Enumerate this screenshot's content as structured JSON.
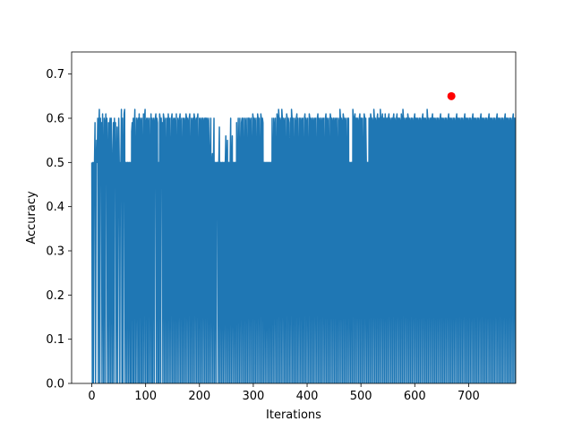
{
  "chart_data": {
    "type": "line",
    "title": "",
    "xlabel": "Iterations",
    "ylabel": "Accuracy",
    "xlim": [
      -37.5,
      787.5
    ],
    "ylim": [
      0.0,
      0.75
    ],
    "xticks": [
      0,
      100,
      200,
      300,
      400,
      500,
      600,
      700
    ],
    "yticks": [
      0.0,
      0.1,
      0.2,
      0.3,
      0.4,
      0.5,
      0.6,
      0.7
    ],
    "xtick_labels": [
      "0",
      "100",
      "200",
      "300",
      "400",
      "500",
      "600",
      "700"
    ],
    "ytick_labels": [
      "0.0",
      "0.1",
      "0.2",
      "0.3",
      "0.4",
      "0.5",
      "0.6",
      "0.7"
    ],
    "grid": false,
    "series": [
      {
        "color": "#1f77b4",
        "x_start": 0,
        "x_step": 1,
        "values": [
          0.5,
          0.0,
          0.5,
          0.0,
          0.5,
          0.5,
          0.59,
          0.0,
          0.5,
          0.55,
          0.5,
          0.6,
          0.0,
          0.58,
          0.62,
          0.0,
          0.6,
          0.5,
          0.59,
          0.0,
          0.61,
          0.5,
          0.0,
          0.6,
          0.59,
          0.0,
          0.61,
          0.5,
          0.6,
          0.0,
          0.5,
          0.59,
          0.0,
          0.58,
          0.6,
          0.0,
          0.6,
          0.5,
          0.0,
          0.5,
          0.59,
          0.0,
          0.6,
          0.5,
          0.59,
          0.0,
          0.5,
          0.58,
          0.0,
          0.5,
          0.6,
          0.5,
          0.0,
          0.5,
          0.5,
          0.62,
          0.0,
          0.6,
          0.0,
          0.5,
          0.61,
          0.62,
          0.0,
          0.5,
          0.5,
          0.0,
          0.5,
          0.5,
          0.0,
          0.5,
          0.5,
          0.0,
          0.5,
          0.0,
          0.57,
          0.59,
          0.0,
          0.6,
          0.0,
          0.58,
          0.62,
          0.0,
          0.5,
          0.6,
          0.0,
          0.59,
          0.6,
          0.0,
          0.61,
          0.0,
          0.6,
          0.59,
          0.0,
          0.6,
          0.0,
          0.5,
          0.61,
          0.0,
          0.6,
          0.62,
          0.0,
          0.59,
          0.6,
          0.0,
          0.6,
          0.0,
          0.59,
          0.6,
          0.0,
          0.5,
          0.61,
          0.0,
          0.6,
          0.0,
          0.59,
          0.6,
          0.0,
          0.59,
          0.6,
          0.61,
          0.0,
          0.6,
          0.59,
          0.0,
          0.5,
          0.0,
          0.61,
          0.6,
          0.0,
          0.6,
          0.5,
          0.59,
          0.0,
          0.61,
          0.6,
          0.0,
          0.59,
          0.6,
          0.0,
          0.5,
          0.6,
          0.0,
          0.61,
          0.59,
          0.0,
          0.6,
          0.5,
          0.0,
          0.6,
          0.61,
          0.0,
          0.59,
          0.6,
          0.0,
          0.6,
          0.59,
          0.0,
          0.61,
          0.5,
          0.0,
          0.6,
          0.59,
          0.0,
          0.6,
          0.61,
          0.0,
          0.59,
          0.6,
          0.0,
          0.5,
          0.6,
          0.0,
          0.6,
          0.59,
          0.0,
          0.61,
          0.6,
          0.0,
          0.6,
          0.59,
          0.0,
          0.6,
          0.61,
          0.0,
          0.5,
          0.6,
          0.0,
          0.59,
          0.6,
          0.0,
          0.61,
          0.6,
          0.0,
          0.59,
          0.6,
          0.0,
          0.6,
          0.61,
          0.0,
          0.5,
          0.6,
          0.0,
          0.6,
          0.59,
          0.0,
          0.6,
          0.6,
          0.0,
          0.59,
          0.6,
          0.0,
          0.6,
          0.6,
          0.0,
          0.6,
          0.59,
          0.0,
          0.6,
          0.5,
          0.0,
          0.53,
          0.6,
          0.0,
          0.5,
          0.52,
          0.0,
          0.5,
          0.6,
          0.0,
          0.5,
          0.5,
          0.0,
          0.5,
          0.5,
          0.5,
          0.0,
          0.5,
          0.58,
          0.0,
          0.5,
          0.5,
          0.0,
          0.5,
          0.5,
          0.0,
          0.5,
          0.5,
          0.0,
          0.5,
          0.56,
          0.0,
          0.5,
          0.55,
          0.0,
          0.5,
          0.5,
          0.0,
          0.5,
          0.6,
          0.0,
          0.5,
          0.56,
          0.0,
          0.5,
          0.5,
          0.0,
          0.5,
          0.5,
          0.0,
          0.59,
          0.5,
          0.0,
          0.6,
          0.5,
          0.0,
          0.6,
          0.5,
          0.0,
          0.59,
          0.6,
          0.0,
          0.6,
          0.5,
          0.0,
          0.6,
          0.59,
          0.0,
          0.6,
          0.5,
          0.0,
          0.6,
          0.6,
          0.0,
          0.6,
          0.59,
          0.0,
          0.6,
          0.5,
          0.0,
          0.61,
          0.6,
          0.0,
          0.6,
          0.59,
          0.0,
          0.6,
          0.5,
          0.0,
          0.61,
          0.6,
          0.0,
          0.6,
          0.5,
          0.0,
          0.61,
          0.6,
          0.0,
          0.6,
          0.59,
          0.0,
          0.5,
          0.5,
          0.0,
          0.5,
          0.5,
          0.0,
          0.5,
          0.5,
          0.0,
          0.5,
          0.5,
          0.0,
          0.5,
          0.5,
          0.0,
          0.6,
          0.5,
          0.0,
          0.6,
          0.58,
          0.0,
          0.6,
          0.5,
          0.0,
          0.61,
          0.6,
          0.0,
          0.62,
          0.6,
          0.0,
          0.6,
          0.59,
          0.0,
          0.62,
          0.6,
          0.0,
          0.6,
          0.59,
          0.0,
          0.6,
          0.5,
          0.0,
          0.61,
          0.6,
          0.0,
          0.6,
          0.59,
          0.0,
          0.5,
          0.6,
          0.0,
          0.62,
          0.6,
          0.0,
          0.6,
          0.5,
          0.0,
          0.6,
          0.59,
          0.0,
          0.6,
          0.61,
          0.0,
          0.6,
          0.5,
          0.0,
          0.6,
          0.6,
          0.0,
          0.59,
          0.6,
          0.0,
          0.6,
          0.5,
          0.0,
          0.6,
          0.61,
          0.0,
          0.6,
          0.59,
          0.0,
          0.6,
          0.5,
          0.0,
          0.61,
          0.6,
          0.0,
          0.6,
          0.59,
          0.0,
          0.6,
          0.6,
          0.0,
          0.59,
          0.6,
          0.0,
          0.6,
          0.5,
          0.0,
          0.6,
          0.61,
          0.0,
          0.6,
          0.59,
          0.0,
          0.6,
          0.6,
          0.0,
          0.59,
          0.6,
          0.0,
          0.6,
          0.5,
          0.0,
          0.6,
          0.61,
          0.0,
          0.6,
          0.59,
          0.0,
          0.6,
          0.5,
          0.0,
          0.61,
          0.6,
          0.0,
          0.6,
          0.59,
          0.0,
          0.6,
          0.6,
          0.0,
          0.59,
          0.6,
          0.0,
          0.6,
          0.5,
          0.0,
          0.6,
          0.59,
          0.0,
          0.62,
          0.6,
          0.0,
          0.6,
          0.59,
          0.0,
          0.61,
          0.6,
          0.0,
          0.6,
          0.59,
          0.0,
          0.6,
          0.5,
          0.0,
          0.6,
          0.6,
          0.0,
          0.5,
          0.5,
          0.0,
          0.5,
          0.5,
          0.0,
          0.62,
          0.6,
          0.0,
          0.6,
          0.61,
          0.0,
          0.6,
          0.6,
          0.0,
          0.6,
          0.59,
          0.0,
          0.6,
          0.61,
          0.0,
          0.6,
          0.6,
          0.0,
          0.6,
          0.5,
          0.0,
          0.61,
          0.6,
          0.0,
          0.6,
          0.5,
          0.0,
          0.5,
          0.5,
          0.0,
          0.6,
          0.6,
          0.0,
          0.61,
          0.6,
          0.0,
          0.6,
          0.59,
          0.0,
          0.62,
          0.6,
          0.0,
          0.6,
          0.59,
          0.0,
          0.6,
          0.61,
          0.0,
          0.6,
          0.6,
          0.0,
          0.62,
          0.59,
          0.0,
          0.6,
          0.61,
          0.0,
          0.6,
          0.6,
          0.0,
          0.61,
          0.59,
          0.0,
          0.6,
          0.6,
          0.0,
          0.6,
          0.61,
          0.0,
          0.6,
          0.59,
          0.0,
          0.6,
          0.6,
          0.0,
          0.6,
          0.61,
          0.0,
          0.6,
          0.59,
          0.0,
          0.6,
          0.61,
          0.0,
          0.6,
          0.6,
          0.0,
          0.6,
          0.59,
          0.0,
          0.61,
          0.6,
          0.0,
          0.62,
          0.6,
          0.0,
          0.6,
          0.59,
          0.0,
          0.6,
          0.6,
          0.0,
          0.61,
          0.6,
          0.0,
          0.6,
          0.59,
          0.0,
          0.6,
          0.6,
          0.0,
          0.6,
          0.59,
          0.0,
          0.6,
          0.61,
          0.0,
          0.6,
          0.6,
          0.0,
          0.6,
          0.59,
          0.0,
          0.6,
          0.6,
          0.0,
          0.6,
          0.59,
          0.0,
          0.6,
          0.61,
          0.0,
          0.6,
          0.6,
          0.0,
          0.6,
          0.59,
          0.0,
          0.62,
          0.6,
          0.0,
          0.6,
          0.59,
          0.0,
          0.6,
          0.6,
          0.0,
          0.6,
          0.61,
          0.0,
          0.6,
          0.6,
          0.0,
          0.6,
          0.59,
          0.0,
          0.6,
          0.6,
          0.0,
          0.6,
          0.59,
          0.0,
          0.6,
          0.61,
          0.0,
          0.6,
          0.6,
          0.0,
          0.6,
          0.59,
          0.0,
          0.6,
          0.6,
          0.0,
          0.6,
          0.59,
          0.0,
          0.6,
          0.61,
          0.0,
          0.6,
          0.6,
          0.0,
          0.6,
          0.59,
          0.0,
          0.6,
          0.6,
          0.0,
          0.6,
          0.59,
          0.0,
          0.6,
          0.61,
          0.0,
          0.6,
          0.6,
          0.0,
          0.6,
          0.59,
          0.0,
          0.6,
          0.6,
          0.0,
          0.6,
          0.59,
          0.0,
          0.6,
          0.61,
          0.0,
          0.6,
          0.6,
          0.0,
          0.6,
          0.59,
          0.0,
          0.6,
          0.6,
          0.0,
          0.6,
          0.59,
          0.0,
          0.6,
          0.61,
          0.0,
          0.6,
          0.6,
          0.0,
          0.6,
          0.59,
          0.0,
          0.6,
          0.6,
          0.0,
          0.6,
          0.59,
          0.0,
          0.6,
          0.61,
          0.0,
          0.6,
          0.6,
          0.0,
          0.6,
          0.59,
          0.0,
          0.6,
          0.6,
          0.0,
          0.6,
          0.59,
          0.0,
          0.6,
          0.61,
          0.0,
          0.6,
          0.6,
          0.0,
          0.6,
          0.59,
          0.0,
          0.6,
          0.6,
          0.0,
          0.6,
          0.59,
          0.0,
          0.6,
          0.61,
          0.0,
          0.6,
          0.6,
          0.0,
          0.6,
          0.59,
          0.0,
          0.6,
          0.6,
          0.0,
          0.6,
          0.59,
          0.0,
          0.6,
          0.61,
          0.0,
          0.6,
          0.6,
          0.0,
          0.6,
          0.59,
          0.0,
          0.6,
          0.6,
          0.0,
          0.6,
          0.59,
          0.0,
          0.6,
          0.61,
          0.0,
          0.6,
          0.6,
          0.0,
          0.6,
          0.59,
          0.0,
          0.6,
          0.6,
          0.0,
          0.6,
          0.59,
          0.0,
          0.6,
          0.61,
          0.0,
          0.6,
          0.6,
          0.0,
          0.6,
          0.59,
          0.0,
          0.6,
          0.6,
          0.0,
          0.6,
          0.59,
          0.0,
          0.6,
          0.61,
          0.0,
          0.6,
          0.6
        ]
      }
    ],
    "highlight": {
      "x": 668,
      "y": 0.65,
      "color": "#ff0000"
    }
  }
}
